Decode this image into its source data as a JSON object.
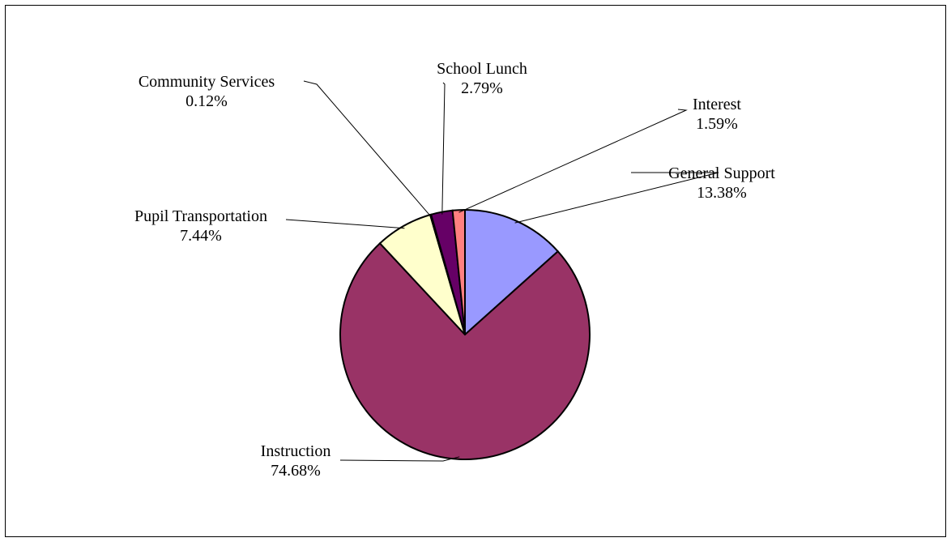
{
  "chart_data": {
    "type": "pie",
    "title": "",
    "start_angle_deg": 0,
    "direction": "clockwise",
    "slices": [
      {
        "label": "General Support",
        "value": 13.38,
        "value_label": "13.38%",
        "color": "#9999ff"
      },
      {
        "label": "Instruction",
        "value": 74.68,
        "value_label": "74.68%",
        "color": "#993366"
      },
      {
        "label": "Pupil Transportation",
        "value": 7.44,
        "value_label": "7.44%",
        "color": "#ffffcc"
      },
      {
        "label": "Community Services",
        "value": 0.12,
        "value_label": "0.12%",
        "color": "#ccffff"
      },
      {
        "label": "School Lunch",
        "value": 2.79,
        "value_label": "2.79%",
        "color": "#660066"
      },
      {
        "label": "Interest",
        "value": 1.59,
        "value_label": "1.59%",
        "color": "#ff8080"
      }
    ],
    "legend": "none",
    "data_labels": "outside-with-leader-lines"
  }
}
